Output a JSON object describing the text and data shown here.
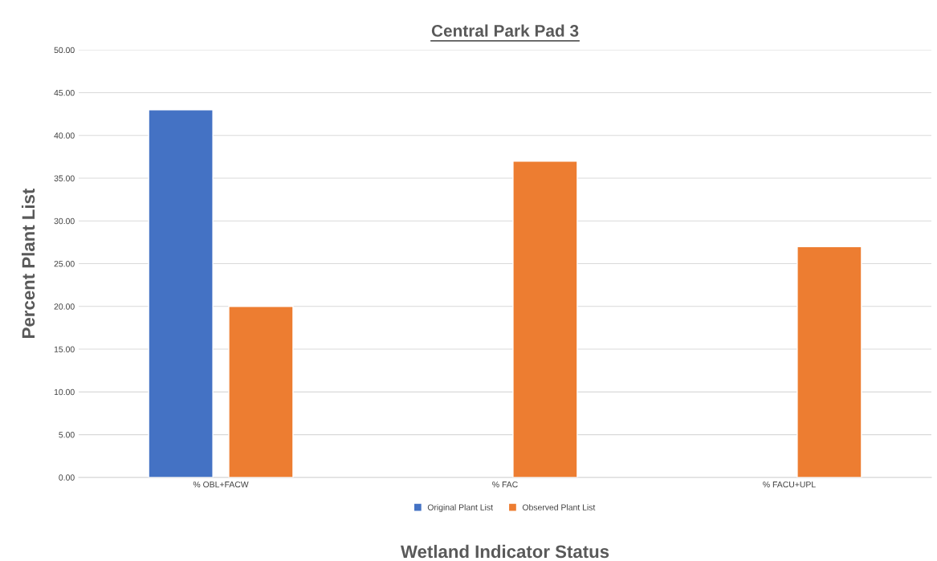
{
  "chart_data": {
    "type": "bar",
    "title": "Central Park Pad 3",
    "xlabel": "Wetland Indicator Status",
    "ylabel": "Percent Plant List",
    "categories": [
      "% OBL+FACW",
      "% FAC",
      "% FACU+UPL"
    ],
    "series": [
      {
        "name": "Original Plant List",
        "color": "#4472c4",
        "values": [
          43,
          null,
          null
        ]
      },
      {
        "name": "Observed Plant List",
        "color": "#ed7d31",
        "values": [
          20,
          37,
          27
        ]
      }
    ],
    "ylim": [
      0,
      50
    ],
    "yticks": [
      {
        "value": 0,
        "label": "0.00"
      },
      {
        "value": 5,
        "label": "5.00"
      },
      {
        "value": 10,
        "label": "10.00"
      },
      {
        "value": 15,
        "label": "15.00"
      },
      {
        "value": 20,
        "label": "20.00"
      },
      {
        "value": 25,
        "label": "25.00"
      },
      {
        "value": 30,
        "label": "30.00"
      },
      {
        "value": 35,
        "label": "35.00"
      },
      {
        "value": 40,
        "label": "40.00"
      },
      {
        "value": 45,
        "label": "45.00"
      },
      {
        "value": 50,
        "label": "50.00"
      }
    ],
    "grid": "y",
    "legend": "bottom"
  }
}
